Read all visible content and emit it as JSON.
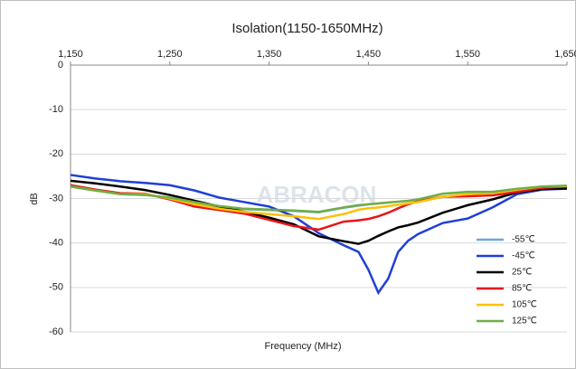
{
  "chart_data": {
    "type": "line",
    "title": "Isolation(1150-1650MHz)",
    "xlabel": "Frequency (MHz)",
    "ylabel": "dB",
    "watermark": "ABRACON",
    "x": [
      1150,
      1175,
      1200,
      1225,
      1250,
      1275,
      1300,
      1325,
      1350,
      1375,
      1400,
      1425,
      1440,
      1450,
      1460,
      1470,
      1480,
      1490,
      1500,
      1525,
      1550,
      1575,
      1600,
      1625,
      1650
    ],
    "xlim": [
      1150,
      1650
    ],
    "xticks": [
      {
        "value": 1150,
        "label": "1,150"
      },
      {
        "value": 1250,
        "label": "1,250"
      },
      {
        "value": 1350,
        "label": "1,350"
      },
      {
        "value": 1450,
        "label": "1,450"
      },
      {
        "value": 1550,
        "label": "1,550"
      },
      {
        "value": 1650,
        "label": "1,650"
      }
    ],
    "ylim": [
      -60,
      0
    ],
    "yticks": [
      0,
      -10,
      -20,
      -30,
      -40,
      -50,
      -60
    ],
    "grid": true,
    "legend": "right",
    "series": [
      {
        "name": "-55℃",
        "color": "#6fa8dc",
        "values": [
          -27.4,
          -28.3,
          -29.1,
          -29.3,
          -29.9,
          -31,
          -31.9,
          -32.5,
          -32.7,
          -32.9,
          -33.2,
          -32.2,
          -31.7,
          -31.4,
          -31.2,
          -31,
          -30.8,
          -30.6,
          -30.3,
          -29,
          -28.6,
          -28.6,
          -27.9,
          -27.4,
          -27.2
        ]
      },
      {
        "name": "-45℃",
        "color": "#1f3fd6",
        "values": [
          -24.7,
          -25.5,
          -26.1,
          -26.5,
          -27,
          -28.2,
          -29.8,
          -30.8,
          -31.8,
          -34,
          -37.8,
          -40.5,
          -42,
          -46,
          -51.2,
          -48,
          -42,
          -39.5,
          -38,
          -35.5,
          -34.5,
          -32,
          -29,
          -28,
          -27.8
        ]
      },
      {
        "name": "25℃",
        "color": "#000000",
        "values": [
          -26,
          -26.6,
          -27.3,
          -28.1,
          -29.2,
          -30.5,
          -31.8,
          -33,
          -34.3,
          -35.8,
          -38.5,
          -39.6,
          -40.2,
          -39.5,
          -38.4,
          -37.4,
          -36.5,
          -36,
          -35.4,
          -33.2,
          -31.5,
          -30.2,
          -28.6,
          -27.9,
          -27.7
        ]
      },
      {
        "name": "85℃",
        "color": "#e8141b",
        "values": [
          -27,
          -28,
          -28.8,
          -28.9,
          -30.2,
          -31.8,
          -32.6,
          -33.4,
          -34.8,
          -36.2,
          -37,
          -35.2,
          -34.9,
          -34.6,
          -34,
          -33.2,
          -32.2,
          -31.3,
          -30.6,
          -29.6,
          -29.5,
          -29.3,
          -28.5,
          -27.6,
          -27.3
        ]
      },
      {
        "name": "105℃",
        "color": "#ffc000",
        "values": [
          -27.3,
          -28.2,
          -29,
          -29,
          -30,
          -31.3,
          -32.3,
          -33,
          -33.5,
          -34,
          -34.6,
          -33.5,
          -32.5,
          -32.2,
          -32,
          -31.7,
          -31.4,
          -31.1,
          -30.8,
          -29.6,
          -29,
          -28.8,
          -28,
          -27.3,
          -27.2
        ]
      },
      {
        "name": "125℃",
        "color": "#70ad47",
        "values": [
          -27.3,
          -28.2,
          -29,
          -29.2,
          -29.8,
          -30.8,
          -31.7,
          -32.3,
          -32.5,
          -32.7,
          -33,
          -32,
          -31.5,
          -31.3,
          -31.1,
          -30.9,
          -30.7,
          -30.5,
          -30.2,
          -28.9,
          -28.5,
          -28.5,
          -27.8,
          -27.3,
          -27.1
        ]
      }
    ]
  }
}
